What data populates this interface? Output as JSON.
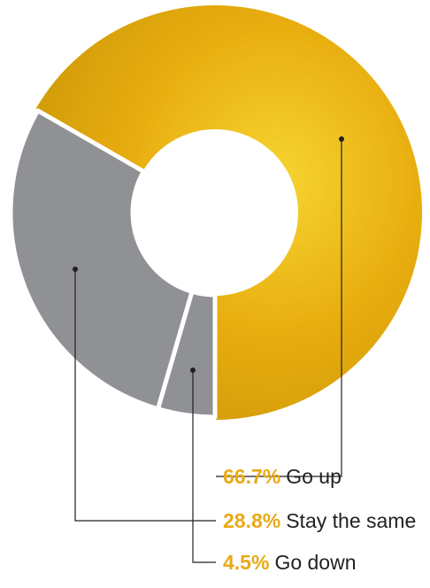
{
  "colors": {
    "accent_gold": "#e8ad0f",
    "gold_light": "#f6d531",
    "gold_dark": "#d49e0a",
    "gray_slice": "#8f9194",
    "gap": "#ffffff",
    "leader": "#231f20",
    "pct_text": "#e9a916"
  },
  "chart_data": {
    "type": "pie",
    "variant": "donut",
    "title": "",
    "slices": [
      {
        "label": "Go up",
        "value": 66.7,
        "display": "66.7%",
        "color": "#e8ad0f"
      },
      {
        "label": "Stay the same",
        "value": 28.8,
        "display": "28.8%",
        "color": "#8f9194"
      },
      {
        "label": "Go down",
        "value": 4.5,
        "display": "4.5%",
        "color": "#8f9194"
      }
    ],
    "legend": [
      {
        "pct": "66.7%",
        "label": "Go up"
      },
      {
        "pct": "28.8%",
        "label": "Stay the same"
      },
      {
        "pct": "4.5%",
        "label": "Go down"
      }
    ]
  }
}
